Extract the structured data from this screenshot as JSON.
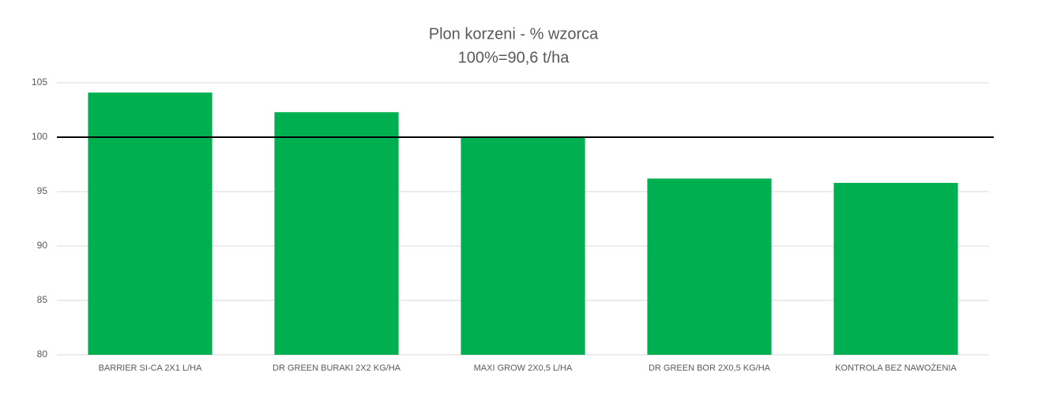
{
  "chart_data": {
    "type": "bar",
    "title": "Plon korzeni - % wzorca",
    "subtitle": "100%=90,6 t/ha",
    "categories": [
      "BARRIER SI-CA 2X1 L/HA",
      "DR GREEN BURAKI 2X2 KG/HA",
      "MAXI GROW 2X0,5 L/HA",
      "DR GREEN BOR 2X0,5 KG/HA",
      "KONTROLA BEZ NAWOŻENIA"
    ],
    "values": [
      104.1,
      102.3,
      100,
      96.2,
      95.8
    ],
    "color": "#00b050",
    "ylim": [
      80,
      105
    ],
    "yticks": [
      80,
      85,
      90,
      95,
      100,
      105
    ],
    "grid": true,
    "reference_line": 100,
    "reference_color": "#000000"
  }
}
